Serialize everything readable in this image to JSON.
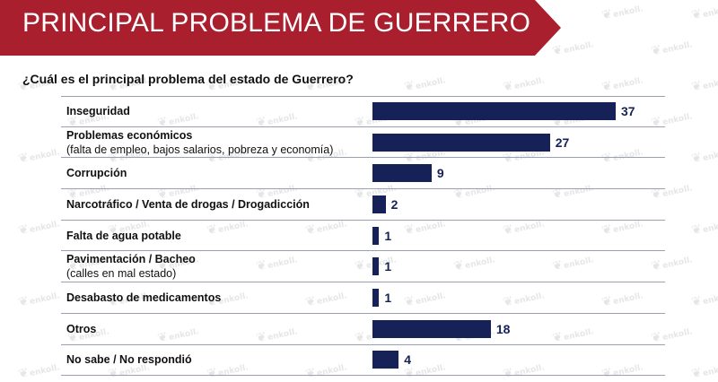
{
  "header": {
    "title": "PRINCIPAL PROBLEMA DE GUERRERO",
    "brand_color": "#a91f2e"
  },
  "question": "¿Cuál es el principal problema del estado de Guerrero?",
  "watermark_text": "enkoll.",
  "colors": {
    "bar": "#162257",
    "value": "#162257"
  },
  "chart_data": {
    "type": "bar",
    "orientation": "horizontal",
    "title": "",
    "xlabel": "",
    "ylabel": "",
    "xlim": [
      0,
      37
    ],
    "categories": [
      {
        "main": "Inseguridad",
        "sub": ""
      },
      {
        "main": "Problemas económicos",
        "sub": "(falta de empleo, bajos salarios, pobreza y economía)"
      },
      {
        "main": "Corrupción",
        "sub": ""
      },
      {
        "main": "Narcotráfico / Venta de drogas / Drogadicción",
        "sub": ""
      },
      {
        "main": "Falta de agua potable",
        "sub": ""
      },
      {
        "main": "Pavimentación / Bacheo",
        "sub": "(calles en mal estado)"
      },
      {
        "main": "Desabasto de medicamentos",
        "sub": ""
      },
      {
        "main": "Otros",
        "sub": ""
      },
      {
        "main": "No sabe / No respondió",
        "sub": ""
      }
    ],
    "values": [
      37,
      27,
      9,
      2,
      1,
      1,
      1,
      18,
      4
    ]
  }
}
